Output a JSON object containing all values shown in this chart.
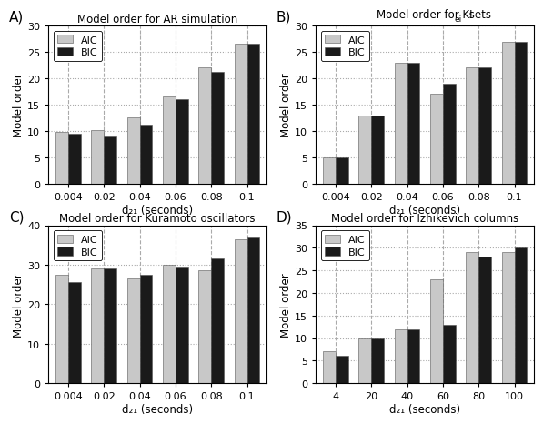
{
  "panels": [
    {
      "label": "A)",
      "title": "Model order for AR simulation",
      "xlabel": "d₂₁ (seconds)",
      "ylabel": "Model order",
      "xticks": [
        "0.004",
        "0.02",
        "0.04",
        "0.06",
        "0.08",
        "0.1"
      ],
      "ylim": [
        0,
        30
      ],
      "yticks": [
        0,
        5,
        10,
        15,
        20,
        25,
        30
      ],
      "aic": [
        9.8,
        10.2,
        12.5,
        16.5,
        22.0,
        26.5
      ],
      "bic": [
        9.4,
        9.0,
        11.2,
        16.0,
        21.2,
        26.5
      ]
    },
    {
      "label": "B)",
      "title": "Model order for KI    sets",
      "xlabel": "d₂₁ (seconds)",
      "ylabel": "Model order",
      "xticks": [
        "0.004",
        "0.02",
        "0.04",
        "0.06",
        "0.08",
        "0.1"
      ],
      "ylim": [
        0,
        30
      ],
      "yticks": [
        0,
        5,
        10,
        15,
        20,
        25,
        30
      ],
      "aic": [
        5.0,
        13.0,
        23.0,
        17.0,
        22.0,
        27.0
      ],
      "bic": [
        5.0,
        13.0,
        23.0,
        19.0,
        22.0,
        27.0
      ]
    },
    {
      "label": "C)",
      "title": "Model order for Kuramoto oscillators",
      "xlabel": "d₂₁ (seconds)",
      "ylabel": "Model order",
      "xticks": [
        "0.004",
        "0.02",
        "0.04",
        "0.06",
        "0.08",
        "0.1"
      ],
      "ylim": [
        0,
        40
      ],
      "yticks": [
        0,
        10,
        20,
        30,
        40
      ],
      "aic": [
        27.5,
        29.0,
        26.5,
        30.0,
        28.5,
        36.5
      ],
      "bic": [
        25.5,
        29.0,
        27.5,
        29.5,
        31.5,
        37.0
      ]
    },
    {
      "label": "D)",
      "title": "Model order for Izhikevich columns",
      "xlabel": "d₂₁ (seconds)",
      "ylabel": "Model order",
      "xticks": [
        "4",
        "20",
        "40",
        "60",
        "80",
        "100"
      ],
      "ylim": [
        0,
        35
      ],
      "yticks": [
        0,
        5,
        10,
        15,
        20,
        25,
        30,
        35
      ],
      "aic": [
        7.0,
        10.0,
        12.0,
        23.0,
        29.0,
        29.0
      ],
      "bic": [
        6.0,
        10.0,
        12.0,
        13.0,
        28.0,
        30.0
      ]
    }
  ],
  "aic_color": "#c8c8c8",
  "bic_color": "#1a1a1a",
  "bar_width": 0.35,
  "background_color": "#ffffff",
  "grid_color": "#aaaaaa",
  "title_fontsize": 8.5,
  "label_fontsize": 8.5,
  "tick_fontsize": 8,
  "legend_fontsize": 8,
  "panel_label_fontsize": 11
}
